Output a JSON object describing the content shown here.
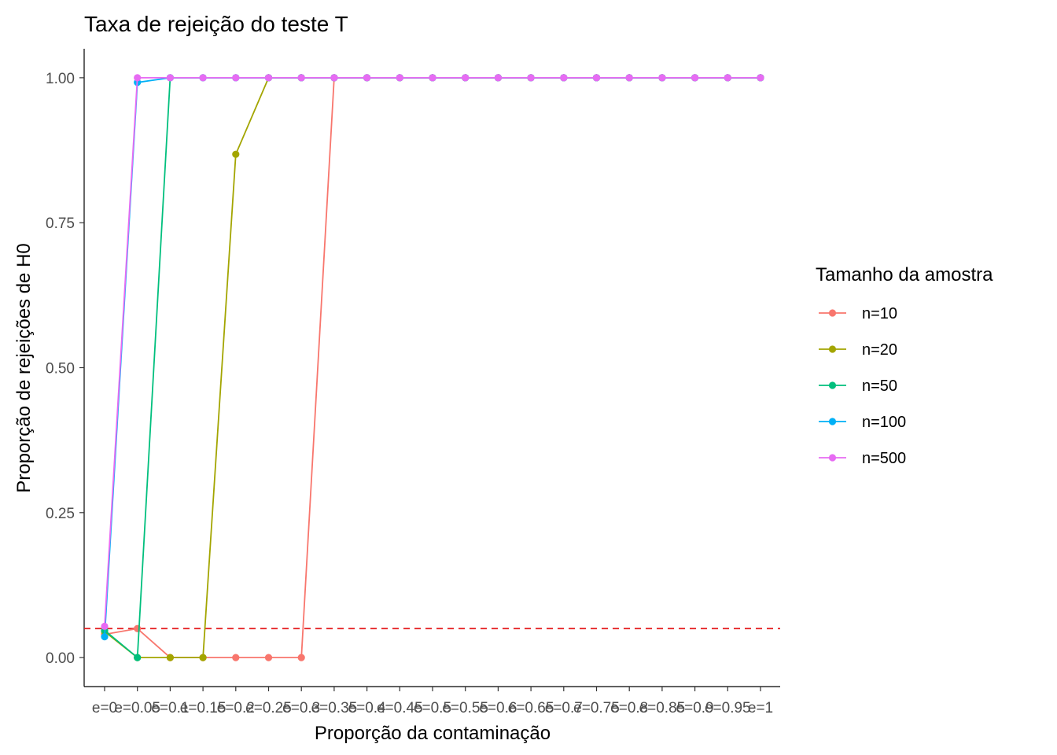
{
  "chart_data": {
    "type": "line",
    "title": "Taxa de rejeição do teste T",
    "xlabel": "Proporção da contaminação",
    "ylabel": "Proporção de rejeições de H0",
    "categories": [
      "e=0",
      "e=0.05",
      "e=0.1",
      "e=0.15",
      "e=0.2",
      "e=0.25",
      "e=0.3",
      "e=0.35",
      "e=0.4",
      "e=0.45",
      "e=0.5",
      "e=0.55",
      "e=0.6",
      "e=0.65",
      "e=0.7",
      "e=0.75",
      "e=0.8",
      "e=0.85",
      "e=0.9",
      "e=0.95",
      "e=1"
    ],
    "ylim": [
      -0.05,
      1.05
    ],
    "yticks": [
      0.0,
      0.25,
      0.5,
      0.75,
      1.0
    ],
    "ytick_labels": [
      "0.00",
      "0.25",
      "0.50",
      "0.75",
      "1.00"
    ],
    "reference_line": {
      "y": 0.05,
      "color": "#E41A1C",
      "style": "dashed"
    },
    "legend": {
      "title": "Tamanho da amostra",
      "position": "right"
    },
    "grid": false,
    "series": [
      {
        "name": "n=10",
        "color": "#F8766D",
        "values": [
          0.04,
          0.05,
          0,
          0,
          0,
          0,
          0,
          1,
          1,
          1,
          1,
          1,
          1,
          1,
          1,
          1,
          1,
          1,
          1,
          1,
          1
        ]
      },
      {
        "name": "n=20",
        "color": "#A3A500",
        "values": [
          0.045,
          0,
          0,
          0,
          0.868,
          1,
          1,
          1,
          1,
          1,
          1,
          1,
          1,
          1,
          1,
          1,
          1,
          1,
          1,
          1,
          1
        ]
      },
      {
        "name": "n=50",
        "color": "#00BF7D",
        "values": [
          0.047,
          0,
          1,
          1,
          1,
          1,
          1,
          1,
          1,
          1,
          1,
          1,
          1,
          1,
          1,
          1,
          1,
          1,
          1,
          1,
          1
        ]
      },
      {
        "name": "n=100",
        "color": "#00B0F6",
        "values": [
          0.036,
          0.992,
          1,
          1,
          1,
          1,
          1,
          1,
          1,
          1,
          1,
          1,
          1,
          1,
          1,
          1,
          1,
          1,
          1,
          1,
          1
        ]
      },
      {
        "name": "n=500",
        "color": "#E76BF3",
        "values": [
          0.054,
          1,
          1,
          1,
          1,
          1,
          1,
          1,
          1,
          1,
          1,
          1,
          1,
          1,
          1,
          1,
          1,
          1,
          1,
          1,
          1
        ]
      }
    ]
  }
}
